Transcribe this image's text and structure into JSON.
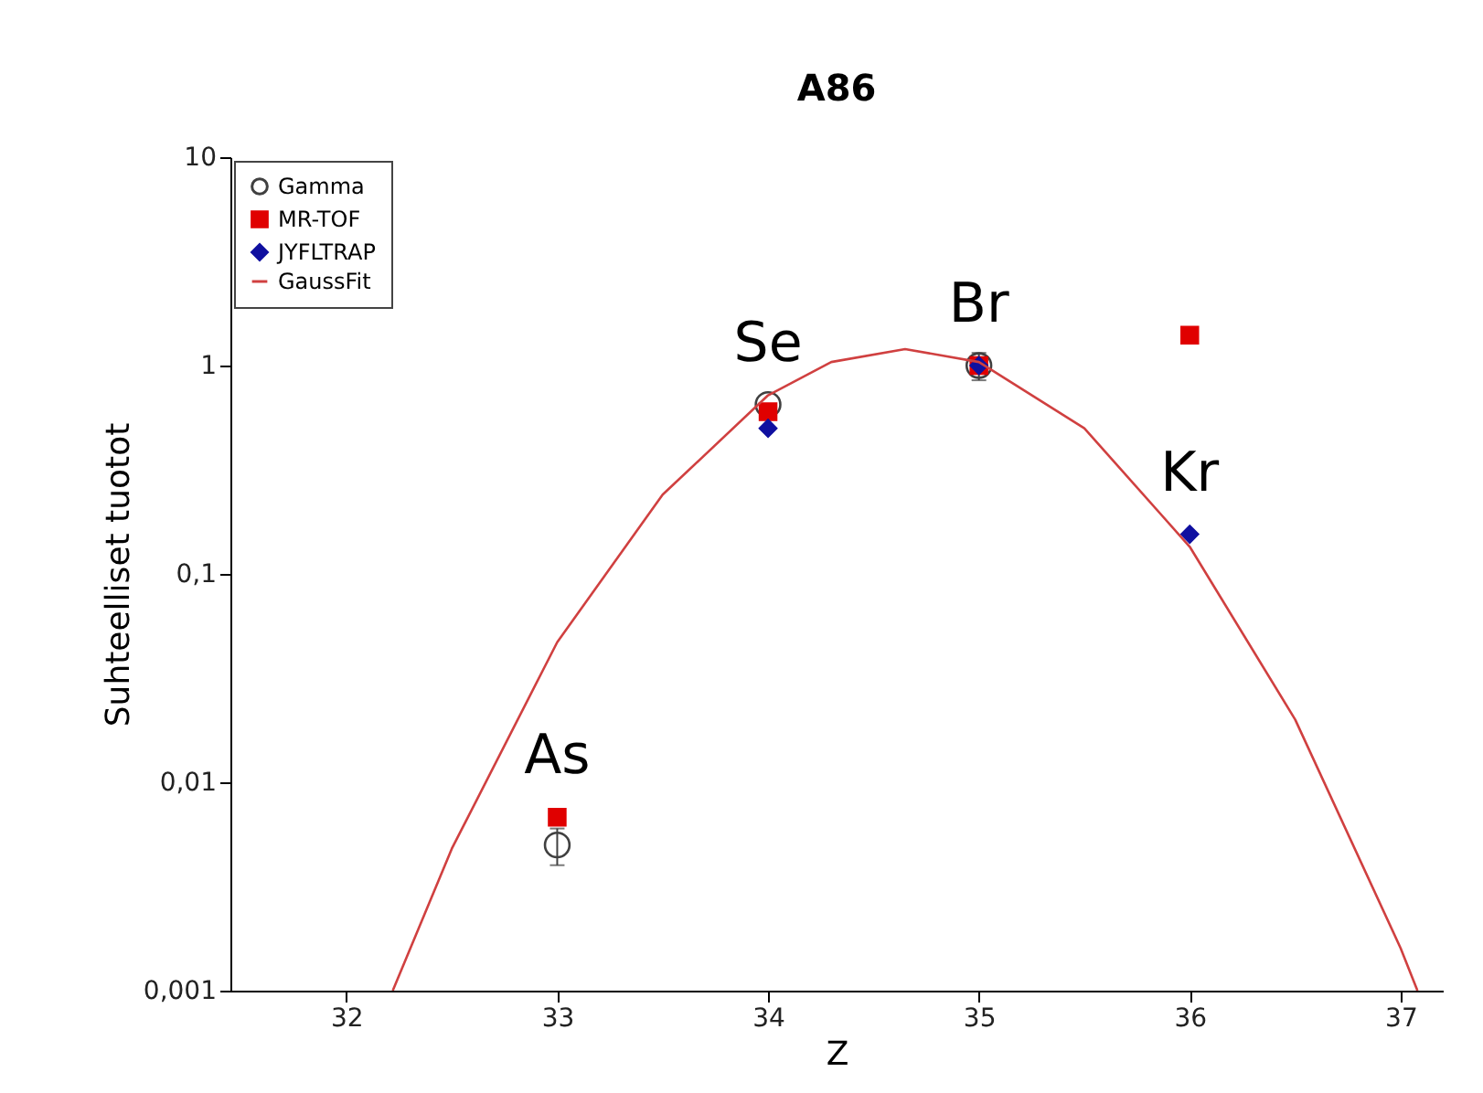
{
  "chart_data": {
    "type": "scatter",
    "title": "A86",
    "xlabel": "Z",
    "ylabel": "Suhteelliset tuotot",
    "log": true,
    "legend": "top left",
    "grid": false,
    "xlim": [
      31.45,
      37.2
    ],
    "xticks": [
      32,
      33,
      34,
      35,
      36,
      37
    ],
    "ylim": [
      0.001,
      10
    ],
    "yticks": [
      {
        "value": 0.001,
        "label": "0,001"
      },
      {
        "value": 0.01,
        "label": "0,01"
      },
      {
        "value": 0.1,
        "label": "0,1"
      },
      1,
      10
    ],
    "series": [
      {
        "name": "Gamma",
        "marker": "circle",
        "color": "#404040",
        "x": [
          33,
          34,
          35
        ],
        "values": [
          0.005,
          0.65,
          1.0
        ],
        "errors": [
          [
            0.004,
            0.006
          ],
          null,
          [
            0.85,
            1.15
          ]
        ]
      },
      {
        "name": "MR-TOF",
        "marker": "square",
        "color": "#e00000",
        "x": [
          33,
          34,
          35,
          36
        ],
        "values": [
          0.0068,
          0.6,
          1.0,
          1.4
        ]
      },
      {
        "name": "JYFLTRAP",
        "marker": "diamond",
        "color": "#1010a0",
        "x": [
          34,
          35,
          36
        ],
        "values": [
          0.5,
          1.0,
          0.155
        ]
      },
      {
        "name": "GaussFit",
        "type": "line",
        "marker": "none",
        "color": "#d04040",
        "x": [
          32.22,
          32.5,
          33,
          33.5,
          34,
          34.3,
          34.65,
          35,
          35.5,
          36,
          36.5,
          37,
          37.08
        ],
        "values": [
          0.001,
          0.0048,
          0.047,
          0.24,
          0.72,
          1.04,
          1.2,
          1.04,
          0.5,
          0.135,
          0.02,
          0.0016,
          0.001
        ]
      }
    ],
    "annotations": [
      {
        "text": "As",
        "x": 33,
        "y": 0.0068
      },
      {
        "text": "Se",
        "x": 34,
        "y": 0.65
      },
      {
        "text": "Br",
        "x": 35,
        "y": 1.0
      },
      {
        "text": "Kr",
        "x": 36,
        "y": 0.155
      }
    ]
  }
}
